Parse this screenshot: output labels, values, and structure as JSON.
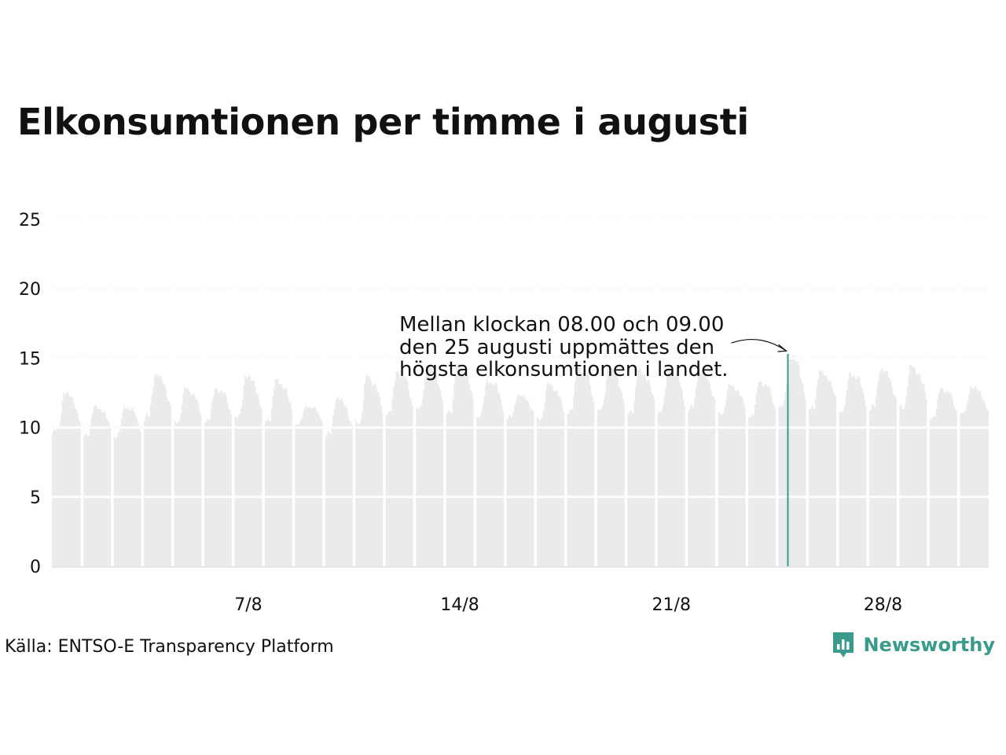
{
  "title": "Elkonsumtionen per timme i augusti",
  "source": "Källa: ENTSO-E Transparency Platform",
  "brand": {
    "name": "Newsworthy",
    "icon": "bar-chart-speech-bubble-icon",
    "color": "#3a9a8c"
  },
  "chart_data": {
    "type": "area",
    "xlabel": "",
    "ylabel": "",
    "ylim": [
      0,
      25
    ],
    "yticks": [
      0,
      5,
      10,
      15,
      20,
      25
    ],
    "xticks": [
      {
        "day": 7,
        "label": "7/8"
      },
      {
        "day": 14,
        "label": "14/8"
      },
      {
        "day": 21,
        "label": "21/8"
      },
      {
        "day": 28,
        "label": "28/8"
      }
    ],
    "grid": true,
    "colors": {
      "area": "#ebebeb",
      "highlight": "#3a9a8c",
      "grid": "#e4e4e4"
    },
    "daily_profile": [
      {
        "day": 1,
        "min": 9.6,
        "max": 12.6
      },
      {
        "day": 2,
        "min": 9.4,
        "max": 11.6
      },
      {
        "day": 3,
        "min": 9.3,
        "max": 11.6
      },
      {
        "day": 4,
        "min": 10.5,
        "max": 13.9
      },
      {
        "day": 5,
        "min": 10.3,
        "max": 12.9
      },
      {
        "day": 6,
        "min": 10.4,
        "max": 12.9
      },
      {
        "day": 7,
        "min": 10.5,
        "max": 13.8
      },
      {
        "day": 8,
        "min": 10.4,
        "max": 13.5
      },
      {
        "day": 9,
        "min": 10.2,
        "max": 11.6
      },
      {
        "day": 10,
        "min": 9.3,
        "max": 12.2
      },
      {
        "day": 11,
        "min": 10.2,
        "max": 13.8
      },
      {
        "day": 12,
        "min": 10.9,
        "max": 14.1
      },
      {
        "day": 13,
        "min": 11.1,
        "max": 14.5
      },
      {
        "day": 14,
        "min": 11.0,
        "max": 14.6
      },
      {
        "day": 15,
        "min": 10.7,
        "max": 13.5
      },
      {
        "day": 16,
        "min": 10.6,
        "max": 12.4
      },
      {
        "day": 17,
        "min": 10.5,
        "max": 13.2
      },
      {
        "day": 18,
        "min": 11.0,
        "max": 14.5
      },
      {
        "day": 19,
        "min": 11.0,
        "max": 14.3
      },
      {
        "day": 20,
        "min": 11.0,
        "max": 14.2
      },
      {
        "day": 21,
        "min": 11.1,
        "max": 14.3
      },
      {
        "day": 22,
        "min": 11.2,
        "max": 14.1
      },
      {
        "day": 23,
        "min": 10.9,
        "max": 13.1
      },
      {
        "day": 24,
        "min": 10.7,
        "max": 13.4
      },
      {
        "day": 25,
        "min": 11.2,
        "max": 15.3
      },
      {
        "day": 26,
        "min": 11.3,
        "max": 14.1
      },
      {
        "day": 27,
        "min": 11.1,
        "max": 14.0
      },
      {
        "day": 28,
        "min": 11.2,
        "max": 14.3
      },
      {
        "day": 29,
        "min": 11.3,
        "max": 14.5
      },
      {
        "day": 30,
        "min": 10.6,
        "max": 12.9
      },
      {
        "day": 31,
        "min": 10.9,
        "max": 13.0
      }
    ],
    "peak": {
      "day": 25,
      "hour": 8,
      "value": 15.3
    },
    "annotation": {
      "lines": [
        "Mellan klockan 08.00 och 09.00",
        "den 25 augusti uppmättes den",
        "högsta elkonsumtionen i landet."
      ]
    }
  }
}
